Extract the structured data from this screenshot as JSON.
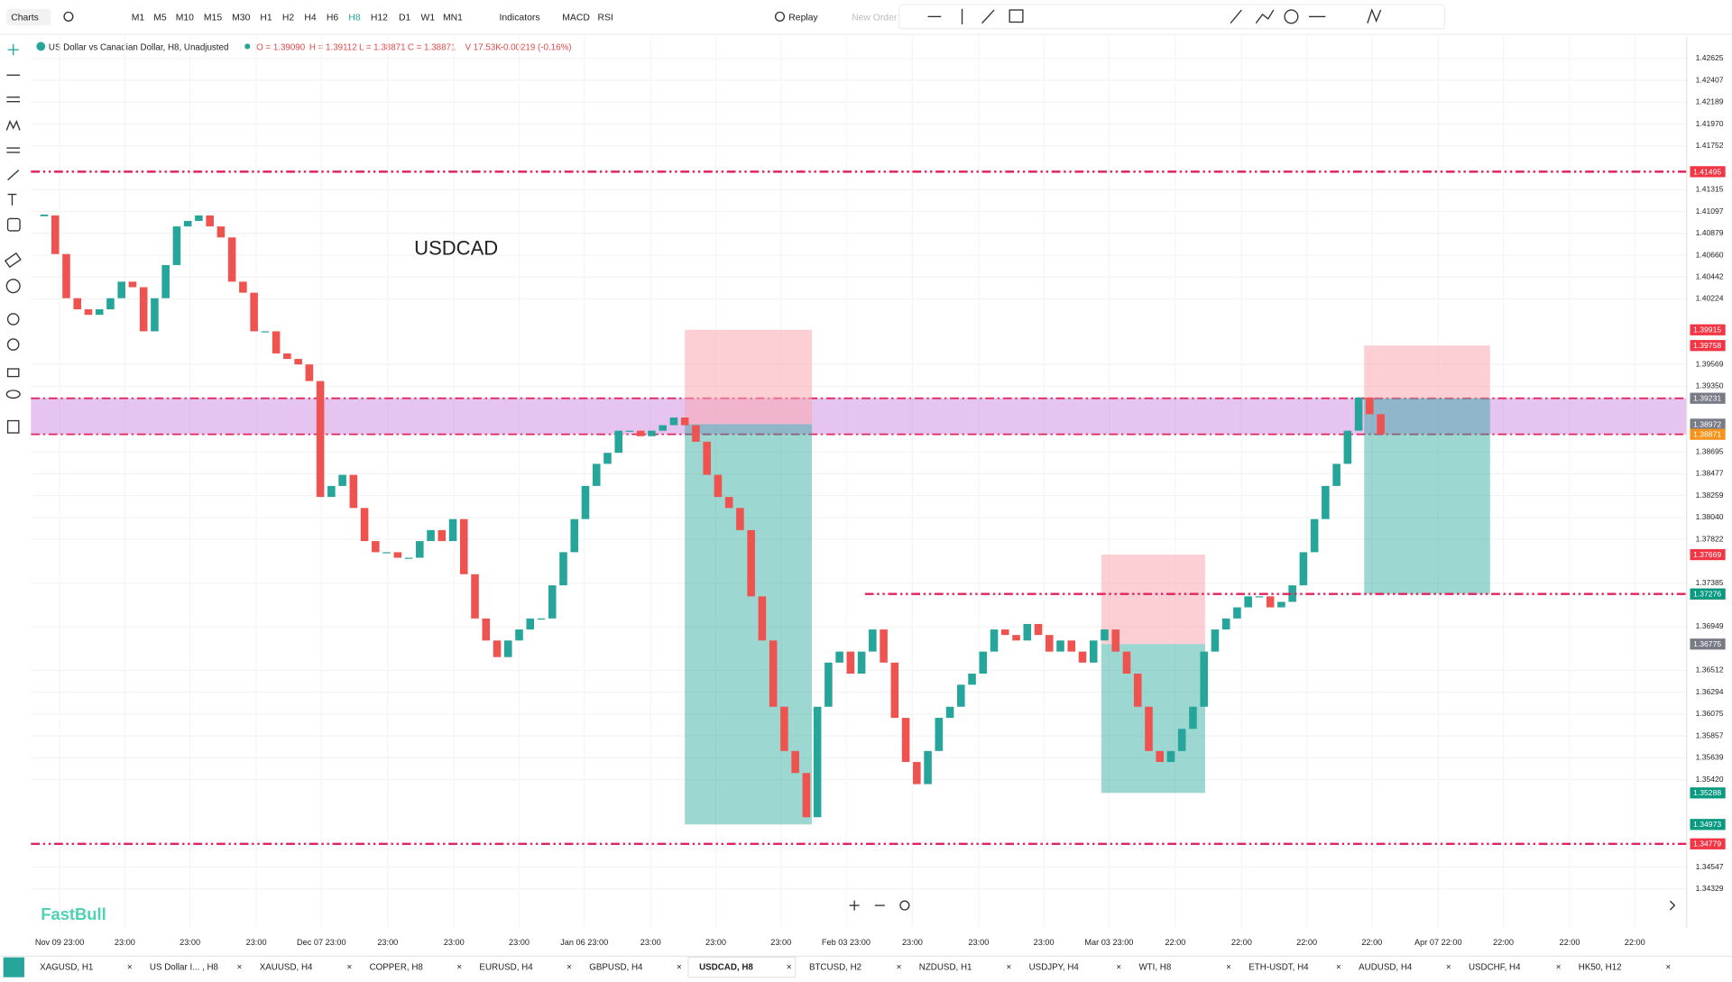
{
  "toolbar": {
    "menu": "Charts",
    "timeframes": [
      "M1",
      "M5",
      "M10",
      "M15",
      "M30",
      "H1",
      "H2",
      "H4",
      "H6",
      "H8",
      "H12",
      "D1",
      "W1",
      "MN1"
    ],
    "active": 9,
    "indicators": "Indicators",
    "macd": "MACD",
    "rsi": "RSI",
    "replay": "Replay",
    "new_order": "New Order"
  },
  "legend": {
    "symbol": "US Dollar vs Canadian Dollar, H8, Unadjusted",
    "open": "O = 1.39090",
    "high": "H = 1.39112",
    "low": "L = 1.38871",
    "close": "C = 1.38871",
    "volume": "V 17.53K",
    "change": "-0.00219 (-0.16%)"
  },
  "brand": "FastBull",
  "tabs": [
    "XAGUSD, H1",
    "US Dollar I... , H8",
    "XAUUSD, H4",
    "COPPER, H8",
    "EURUSD, H4",
    "GBPUSD, H4",
    "USDCAD, H8",
    "BTCUSD, H2",
    "NZDUSD, H1",
    "USDJPY, H4",
    "WTI, H8",
    "ETH-USDT, H4",
    "AUDUSD, H4",
    "USDCHF, H4",
    "HK50, H12"
  ],
  "active_tab": 6,
  "chart_data": {
    "type": "candlestick",
    "annotation": "USDCAD",
    "values": [
      1.41058,
      1.40672,
      1.40231,
      1.4012,
      1.40065,
      1.4012,
      1.40231,
      1.40396,
      1.40341,
      1.399,
      1.40231,
      1.40562,
      1.40948,
      1.41003,
      1.41058,
      1.40948,
      1.40838,
      1.40396,
      1.40286,
      1.399,
      1.399,
      1.39679,
      1.39624,
      1.39569,
      1.39403,
      1.38245,
      1.38355,
      1.38466,
      1.38135,
      1.37804,
      1.37693,
      1.37693,
      1.37638,
      1.37638,
      1.37804,
      1.37914,
      1.37804,
      1.38024,
      1.37473,
      1.37031,
      1.36811,
      1.36645,
      1.36811,
      1.36921,
      1.37031,
      1.37031,
      1.37362,
      1.37693,
      1.38024,
      1.38355,
      1.38576,
      1.38686,
      1.38907,
      1.38907,
      1.38852,
      1.38907,
      1.38962,
      1.39039,
      1.38962,
      1.38797,
      1.38466,
      1.38245,
      1.38135,
      1.37914,
      1.37252,
      1.36811,
      1.36149,
      1.35707,
      1.35487,
      1.35045,
      1.36149,
      1.3659,
      1.367,
      1.3648,
      1.367,
      1.36921,
      1.3659,
      1.36038,
      1.35597,
      1.35376,
      1.35707,
      1.36038,
      1.36149,
      1.36369,
      1.3648,
      1.367,
      1.36921,
      1.36866,
      1.36811,
      1.36976,
      1.36866,
      1.367,
      1.36811,
      1.367,
      1.3659,
      1.36811,
      1.36921,
      1.367,
      1.3648,
      1.36149,
      1.35707,
      1.35597,
      1.35707,
      1.35928,
      1.36149,
      1.367,
      1.36921,
      1.37031,
      1.37142,
      1.37252,
      1.37252,
      1.37142,
      1.37197,
      1.37362,
      1.37693,
      1.38024,
      1.38355,
      1.38576,
      1.38907,
      1.39238,
      1.39072,
      1.38871
    ],
    "up_color": "#26a69a",
    "down_color": "#ef5350",
    "grid": true,
    "xlim": [
      -1.2,
      148.7
    ],
    "xticks": [
      {
        "value": 1.4,
        "label": "Nov 09 23:00"
      },
      {
        "value": 7.3,
        "label": "23:00"
      },
      {
        "value": 13.2,
        "label": "23:00"
      },
      {
        "value": 19.2,
        "label": "23:00"
      },
      {
        "value": 25.1,
        "label": "Dec 07 23:00"
      },
      {
        "value": 31.1,
        "label": "23:00"
      },
      {
        "value": 37.1,
        "label": "23:00"
      },
      {
        "value": 43,
        "label": "23:00"
      },
      {
        "value": 48.9,
        "label": "Jan 06 23:00"
      },
      {
        "value": 54.9,
        "label": "23:00"
      },
      {
        "value": 60.8,
        "label": "23:00"
      },
      {
        "value": 66.7,
        "label": "23:00"
      },
      {
        "value": 72.6,
        "label": "Feb 03 23:00"
      },
      {
        "value": 78.6,
        "label": "23:00"
      },
      {
        "value": 84.6,
        "label": "23:00"
      },
      {
        "value": 90.5,
        "label": "23:00"
      },
      {
        "value": 96.4,
        "label": "Mar 03 23:00"
      },
      {
        "value": 102.4,
        "label": "22:00"
      },
      {
        "value": 108.4,
        "label": "22:00"
      },
      {
        "value": 114.3,
        "label": "22:00"
      },
      {
        "value": 120.2,
        "label": "22:00"
      },
      {
        "value": 126.2,
        "label": "Apr 07 22:00"
      },
      {
        "value": 132.1,
        "label": "22:00"
      },
      {
        "value": 138.1,
        "label": "22:00"
      },
      {
        "value": 144,
        "label": "22:00"
      }
    ],
    "ylim": [
      1.33943,
      1.42846
    ],
    "yticks": [
      1.42625,
      1.42407,
      1.42189,
      {
        "value": 1.4197,
        "label": "1.41970"
      },
      1.41752,
      1.41315,
      1.41097,
      1.40879,
      {
        "value": 1.4066,
        "label": "1.40660"
      },
      1.40442,
      1.40224,
      1.39569,
      {
        "value": 1.3935,
        "label": "1.39350"
      },
      1.38695,
      1.38477,
      1.38259,
      {
        "value": 1.3804,
        "label": "1.38040"
      },
      1.37822,
      1.37385,
      1.36949,
      1.36512,
      1.36294,
      1.36075,
      1.35857,
      1.35639,
      {
        "value": 1.3542,
        "label": "1.35420"
      },
      1.34547,
      1.34329
    ],
    "zone": [
      1.38871,
      1.39231
    ],
    "zone_color": "#c77dde",
    "levels": [
      {
        "value": 1.41495
      },
      {
        "value": 1.34779
      },
      {
        "value": 1.37276,
        "from": 74.3
      }
    ],
    "level_color": "#e0245e",
    "positions": [
      {
        "x": [
          58,
          69.5
        ],
        "stop": 1.39915,
        "entry": 1.38972,
        "target": 1.34973
      },
      {
        "x": [
          95.7,
          105.1
        ],
        "stop": 1.37669,
        "entry": 1.36775,
        "target": 1.35288
      },
      {
        "x": [
          119.5,
          130.9
        ],
        "stop": 1.39758,
        "entry": 1.39231,
        "target": 1.37276
      }
    ],
    "stop_color": "#f23645",
    "entry_color": "#787b86",
    "target_color": "#089981",
    "last_color": "#f7931a"
  }
}
